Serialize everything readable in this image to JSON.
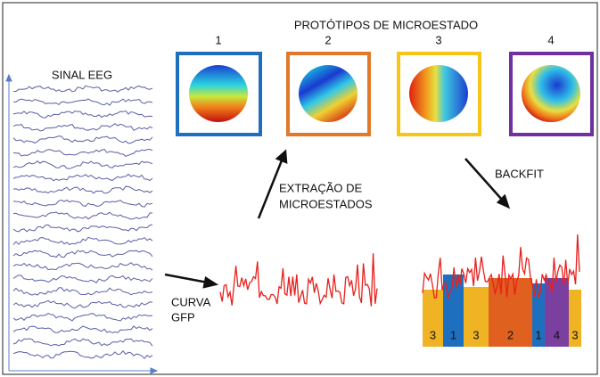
{
  "header": {
    "title": "PROTÓTIPOS DE MICROESTADO"
  },
  "prototypes": [
    {
      "label": "1"
    },
    {
      "label": "2"
    },
    {
      "label": "3"
    },
    {
      "label": "4"
    }
  ],
  "eeg": {
    "label": "SINAL EEG"
  },
  "gfp": {
    "lines": [
      "CURVA",
      "GFP"
    ]
  },
  "extraction": {
    "lines": [
      "EXTRAÇÃO DE",
      "MICROESTADOS"
    ]
  },
  "backfit": {
    "label": "BACKFIT",
    "segments": [
      "3",
      "1",
      "3",
      "2",
      "1",
      "4",
      "3"
    ]
  }
}
